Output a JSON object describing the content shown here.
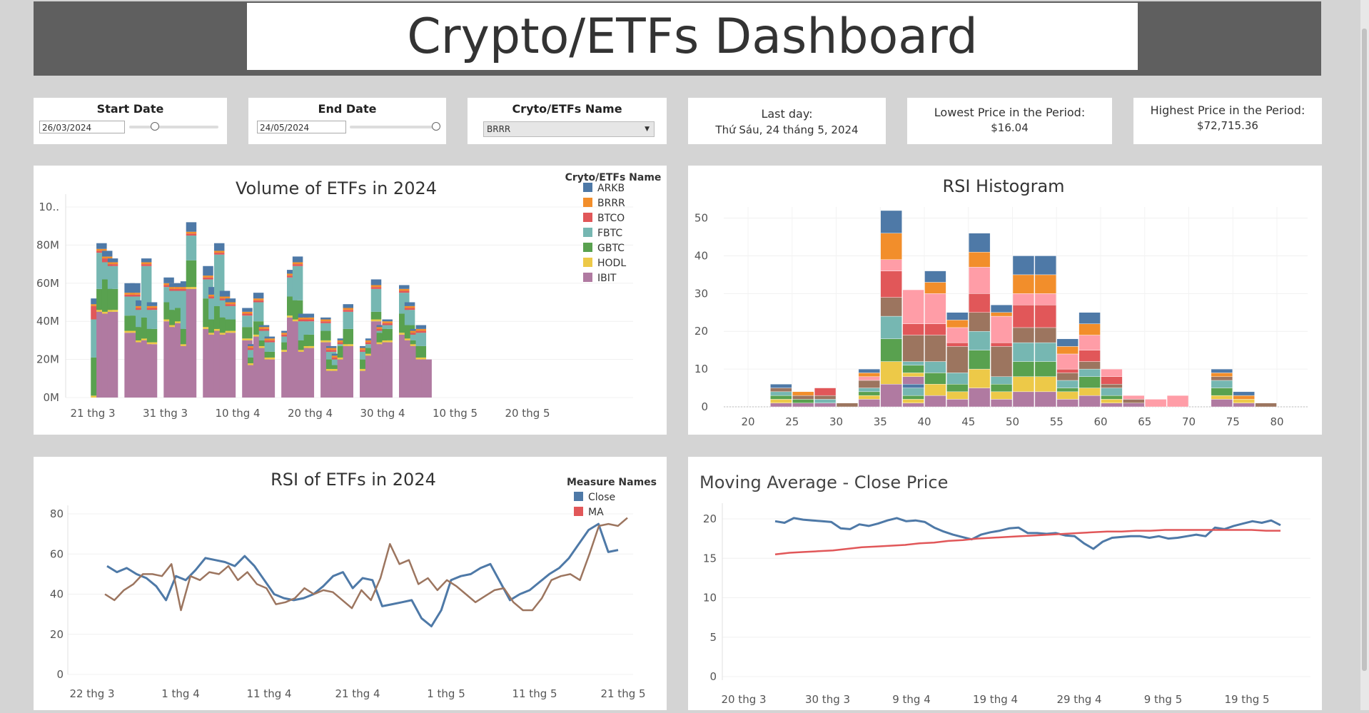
{
  "header": {
    "title": "Crypto/ETFs Dashboard"
  },
  "filters": {
    "start_date": {
      "label": "Start Date",
      "value": "26/03/2024",
      "slider_position": 0.3
    },
    "end_date": {
      "label": "End Date",
      "value": "24/05/2024",
      "slider_position": 1.0
    },
    "name_select": {
      "label": "Cryto/ETFs Name",
      "selected": "BRRR"
    }
  },
  "info": {
    "last_day": {
      "label": "Last day:",
      "value": "Thứ Sáu, 24 tháng 5, 2024"
    },
    "lowest": {
      "label": "Lowest Price in the Period:",
      "value": "$16.04"
    },
    "highest": {
      "label": "Highest Price in the Period:",
      "value": "$72,715.36"
    }
  },
  "colors": {
    "ARKB": "#4e79a7",
    "BRRR": "#f28e2b",
    "BTCO": "#e15759",
    "FBTC": "#76b7b2",
    "GBTC": "#59a14f",
    "HODL": "#edc948",
    "IBIT": "#b07aa1",
    "pink": "#ff9da7",
    "brown": "#9c755f",
    "close": "#4e79a7",
    "ma": "#e15759",
    "ma_rsi": "#9c755f"
  },
  "chart_data": [
    {
      "type": "bar",
      "title": "Volume of ETFs in 2024",
      "legend_title": "Cryto/ETFs Name",
      "legend_position": "top-right",
      "x_ticks": [
        "21 thg 3",
        "31 thg 3",
        "10 thg 4",
        "20 thg 4",
        "30 thg 4",
        "10 thg 5",
        "20 thg 5"
      ],
      "y_ticks": [
        "0M",
        "20M",
        "40M",
        "60M",
        "80M",
        "10.."
      ],
      "ylim": [
        0,
        100
      ],
      "series_names": [
        "IBIT",
        "HODL",
        "GBTC",
        "FBTC",
        "BTCO",
        "BRRR",
        "ARKB"
      ],
      "dates": [
        "2024-03-26",
        "2024-03-27",
        "2024-03-28",
        "2024-03-29",
        "2024-04-01",
        "2024-04-02",
        "2024-04-03",
        "2024-04-04",
        "2024-04-05",
        "2024-04-08",
        "2024-04-09",
        "2024-04-10",
        "2024-04-11",
        "2024-04-12",
        "2024-04-15",
        "2024-04-16",
        "2024-04-17",
        "2024-04-18",
        "2024-04-19",
        "2024-04-22",
        "2024-04-23",
        "2024-04-24",
        "2024-04-25",
        "2024-04-26",
        "2024-04-29",
        "2024-04-30",
        "2024-05-01",
        "2024-05-02",
        "2024-05-03",
        "2024-05-06",
        "2024-05-07",
        "2024-05-08",
        "2024-05-09",
        "2024-05-10",
        "2024-05-13",
        "2024-05-14",
        "2024-05-15",
        "2024-05-16",
        "2024-05-17",
        "2024-05-20",
        "2024-05-21",
        "2024-05-22",
        "2024-05-23",
        "2024-05-24"
      ],
      "values": [
        [
          0,
          1,
          20,
          20,
          7,
          1,
          3
        ],
        [
          45,
          1,
          11,
          19,
          1,
          1,
          3
        ],
        [
          44,
          1,
          17,
          9,
          2,
          1,
          3
        ],
        [
          45,
          1,
          11,
          12,
          1,
          1,
          2
        ],
        [
          34,
          1,
          8,
          10,
          1,
          1,
          5
        ],
        [
          34,
          1,
          8,
          10,
          1,
          1,
          5
        ],
        [
          29,
          1,
          7,
          9,
          1,
          1,
          3
        ],
        [
          30,
          1,
          11,
          27,
          1,
          1,
          2
        ],
        [
          28,
          1,
          7,
          10,
          1,
          1,
          2
        ],
        [
          40,
          1,
          9,
          8,
          1,
          1,
          3
        ],
        [
          37,
          1,
          8,
          10,
          1,
          1,
          2
        ],
        [
          39,
          1,
          7,
          9,
          1,
          1,
          2
        ],
        [
          27,
          1,
          8,
          20,
          1,
          1,
          3
        ],
        [
          57,
          1,
          14,
          13,
          1,
          1,
          5
        ],
        [
          36,
          1,
          15,
          10,
          1,
          1,
          5
        ],
        [
          33,
          1,
          7,
          11,
          1,
          1,
          4
        ],
        [
          35,
          1,
          12,
          27,
          1,
          1,
          4
        ],
        [
          33,
          1,
          8,
          9,
          1,
          1,
          3
        ],
        [
          34,
          1,
          6,
          7,
          1,
          1,
          2
        ],
        [
          30,
          1,
          6,
          6,
          1,
          1,
          2
        ],
        [
          17,
          1,
          3,
          4,
          1,
          1,
          1
        ],
        [
          32,
          1,
          7,
          10,
          1,
          1,
          3
        ],
        [
          26,
          1,
          3,
          5,
          1,
          1,
          1
        ],
        [
          20,
          1,
          3,
          5,
          1,
          1,
          1
        ],
        [
          24,
          1,
          4,
          3,
          1,
          1,
          1
        ],
        [
          42,
          1,
          10,
          10,
          1,
          1,
          2
        ],
        [
          40,
          1,
          10,
          18,
          1,
          1,
          3
        ],
        [
          24,
          1,
          5,
          10,
          1,
          1,
          2
        ],
        [
          26,
          1,
          6,
          7,
          1,
          1,
          2
        ],
        [
          29,
          1,
          5,
          4,
          1,
          1,
          1
        ],
        [
          14,
          1,
          5,
          4,
          1,
          1,
          1
        ],
        [
          14,
          1,
          2,
          3,
          1,
          1,
          1
        ],
        [
          20,
          1,
          6,
          1,
          1,
          1,
          1
        ],
        [
          27,
          1,
          8,
          9,
          1,
          1,
          2
        ],
        [
          14,
          1,
          5,
          4,
          1,
          1,
          1
        ],
        [
          22,
          1,
          3,
          2,
          1,
          1,
          1
        ],
        [
          40,
          1,
          4,
          12,
          1,
          1,
          3
        ],
        [
          28,
          1,
          5,
          1,
          1,
          1,
          1
        ],
        [
          29,
          1,
          6,
          2,
          1,
          1,
          1
        ],
        [
          33,
          1,
          10,
          11,
          1,
          1,
          2
        ],
        [
          30,
          1,
          7,
          8,
          1,
          1,
          2
        ],
        [
          27,
          1,
          2,
          3,
          1,
          1,
          1
        ],
        [
          20,
          1,
          6,
          7,
          1,
          1,
          2
        ],
        [
          20,
          0,
          0,
          0,
          0,
          0,
          0
        ]
      ]
    },
    {
      "type": "bar",
      "title": "RSI Histogram",
      "x_ticks": [
        "20",
        "25",
        "30",
        "35",
        "40",
        "45",
        "50",
        "55",
        "60",
        "65",
        "70",
        "75",
        "80"
      ],
      "y_ticks": [
        "0",
        "10",
        "20",
        "30",
        "40",
        "50"
      ],
      "xlim": [
        17,
        82
      ],
      "ylim": [
        0,
        53
      ],
      "bin_width": 2.5,
      "segment_colors": [
        "#b07aa1",
        "#edc948",
        "#59a14f",
        "#76b7b2",
        "#9c755f",
        "#e15759",
        "#ff9da7",
        "#f28e2b",
        "#4e79a7"
      ],
      "bins": [
        {
          "x": 23.75,
          "values": [
            1,
            1,
            1,
            1,
            1,
            0,
            0,
            0,
            1
          ]
        },
        {
          "x": 26.25,
          "values": [
            1,
            0,
            1,
            0,
            1,
            0,
            0,
            1,
            0
          ]
        },
        {
          "x": 28.75,
          "values": [
            1,
            0,
            0,
            1,
            1,
            2,
            0,
            0,
            0
          ]
        },
        {
          "x": 31.25,
          "values": [
            0,
            0,
            0,
            0,
            1,
            0,
            0,
            0,
            0
          ]
        },
        {
          "x": 33.75,
          "values": [
            2,
            1,
            1,
            1,
            2,
            0,
            1,
            1,
            1
          ]
        },
        {
          "x": 36.25,
          "values": [
            6,
            6,
            6,
            6,
            5,
            7,
            3,
            7,
            6
          ]
        },
        {
          "x": 38.75,
          "values": [
            1,
            1,
            1,
            2,
            0,
            0,
            0,
            0,
            1
          ]
        },
        {
          "x": 38.75,
          "values": [
            2,
            1,
            2,
            1,
            7,
            3,
            9,
            0,
            0
          ]
        },
        {
          "x": 41.25,
          "values": [
            3,
            3,
            3,
            3,
            7,
            3,
            8,
            3,
            3
          ]
        },
        {
          "x": 43.75,
          "values": [
            2,
            2,
            2,
            3,
            7,
            1,
            4,
            2,
            2
          ]
        },
        {
          "x": 46.25,
          "values": [
            5,
            5,
            5,
            5,
            5,
            5,
            7,
            4,
            5
          ]
        },
        {
          "x": 48.75,
          "values": [
            2,
            2,
            2,
            2,
            8,
            1,
            7,
            1,
            2
          ]
        },
        {
          "x": 51.25,
          "values": [
            4,
            4,
            4,
            5,
            4,
            6,
            3,
            5,
            5
          ]
        },
        {
          "x": 53.75,
          "values": [
            4,
            4,
            4,
            5,
            4,
            6,
            3,
            5,
            5
          ]
        },
        {
          "x": 56.25,
          "values": [
            2,
            2,
            1,
            2,
            2,
            1,
            4,
            2,
            2
          ]
        },
        {
          "x": 58.75,
          "values": [
            3,
            2,
            3,
            2,
            2,
            3,
            4,
            3,
            3
          ]
        },
        {
          "x": 61.25,
          "values": [
            1,
            1,
            1,
            2,
            1,
            2,
            2,
            0,
            0
          ]
        },
        {
          "x": 63.75,
          "values": [
            1,
            0,
            0,
            0,
            1,
            0,
            1,
            0,
            0
          ]
        },
        {
          "x": 66.25,
          "values": [
            0,
            0,
            0,
            0,
            0,
            0,
            2,
            0,
            0
          ]
        },
        {
          "x": 68.75,
          "values": [
            0,
            0,
            0,
            0,
            0,
            0,
            3,
            0,
            0
          ]
        },
        {
          "x": 73.75,
          "values": [
            2,
            1,
            2,
            2,
            1,
            0,
            0,
            1,
            1
          ]
        },
        {
          "x": 76.25,
          "values": [
            1,
            1,
            0,
            0,
            0,
            0,
            0,
            1,
            1
          ]
        },
        {
          "x": 78.75,
          "values": [
            0,
            0,
            0,
            0,
            1,
            0,
            0,
            0,
            0
          ]
        }
      ]
    },
    {
      "type": "line",
      "title": "RSI of ETFs in 2024",
      "legend_title": "Measure Names",
      "legend_position": "top-right",
      "x_ticks": [
        "22 thg 3",
        "1 thg 4",
        "11 thg 4",
        "21 thg 4",
        "1 thg 5",
        "11 thg 5",
        "21 thg 5"
      ],
      "y_ticks": [
        "0",
        "20",
        "40",
        "60",
        "80"
      ],
      "ylim": [
        0,
        85
      ],
      "series": [
        {
          "name": "Close",
          "values": [
            54,
            51,
            53,
            50,
            48,
            44,
            37,
            49,
            47,
            52,
            58,
            57,
            56,
            54,
            59,
            54,
            47,
            40,
            38,
            37,
            38,
            40,
            44,
            49,
            51,
            43,
            48,
            47,
            34,
            35,
            36,
            37,
            28,
            24,
            32,
            47,
            49,
            50,
            53,
            55,
            46,
            37,
            40,
            42,
            46,
            50,
            53,
            58,
            65,
            72,
            75,
            61,
            62
          ]
        },
        {
          "name": "MA",
          "values": [
            40,
            37,
            42,
            45,
            50,
            50,
            49,
            55,
            32,
            49,
            47,
            51,
            50,
            54,
            47,
            51,
            45,
            43,
            35,
            36,
            38,
            43,
            40,
            42,
            41,
            37,
            33,
            42,
            37,
            48,
            65,
            55,
            57,
            45,
            48,
            42,
            47,
            44,
            40,
            36,
            39,
            42,
            43,
            36,
            32,
            32,
            38,
            47,
            49,
            50,
            47,
            60,
            74,
            75,
            74,
            78
          ]
        }
      ]
    },
    {
      "type": "line",
      "title": "Moving Average - Close Price",
      "x_ticks": [
        "20 thg 3",
        "30 thg 3",
        "9 thg 4",
        "19 thg 4",
        "29 thg 4",
        "9 thg 5",
        "19 thg 5"
      ],
      "y_ticks": [
        "0",
        "5",
        "10",
        "15",
        "20"
      ],
      "ylim": [
        0,
        21.5
      ],
      "series": [
        {
          "name": "Close",
          "values": [
            19.7,
            19.5,
            20.1,
            19.9,
            19.8,
            19.7,
            19.6,
            18.8,
            18.7,
            19.3,
            19.1,
            19.4,
            19.8,
            20.1,
            19.7,
            19.8,
            19.6,
            18.9,
            18.4,
            18.0,
            17.7,
            17.4,
            18.0,
            18.3,
            18.5,
            18.8,
            18.9,
            18.2,
            18.2,
            18.1,
            18.2,
            17.9,
            17.8,
            16.9,
            16.2,
            17.1,
            17.6,
            17.7,
            17.8,
            17.8,
            17.6,
            17.8,
            17.5,
            17.6,
            17.8,
            18.0,
            17.8,
            18.9,
            18.7,
            19.1,
            19.4,
            19.7,
            19.5,
            19.8,
            19.2
          ]
        },
        {
          "name": "MA",
          "values": [
            15.5,
            15.7,
            15.8,
            15.9,
            16.0,
            16.2,
            16.4,
            16.5,
            16.6,
            16.7,
            16.9,
            17.0,
            17.2,
            17.3,
            17.5,
            17.6,
            17.7,
            17.8,
            17.9,
            18.0,
            18.1,
            18.2,
            18.3,
            18.4,
            18.4,
            18.5,
            18.5,
            18.6,
            18.6,
            18.6,
            18.6,
            18.6,
            18.6,
            18.6,
            18.5,
            18.5
          ]
        }
      ]
    }
  ]
}
